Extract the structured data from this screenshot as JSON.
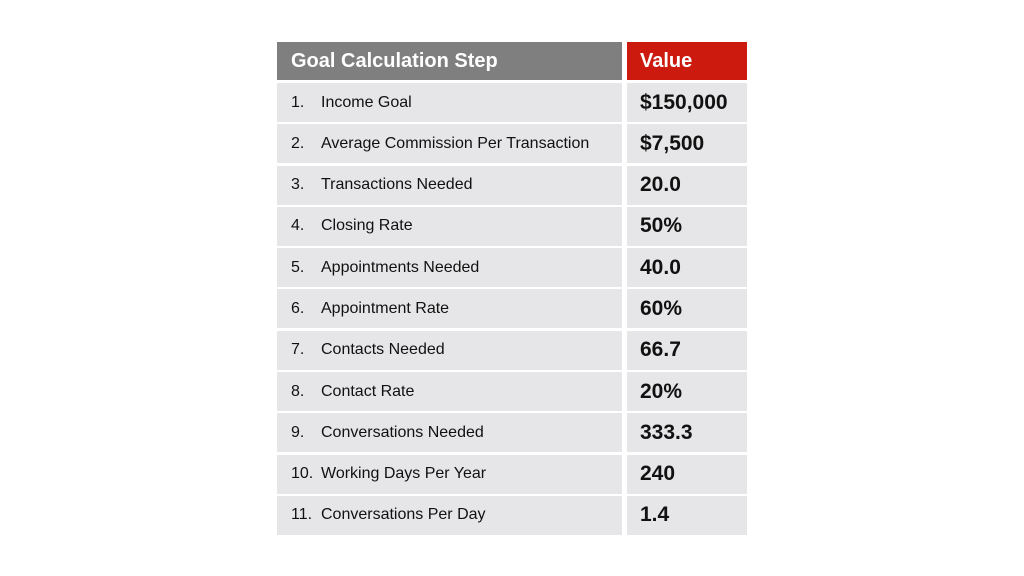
{
  "table": {
    "headers": {
      "step": "Goal Calculation Step",
      "value": "Value"
    },
    "header_colors": {
      "step_bg": "#7f7f7f",
      "value_bg": "#cc1a0e"
    },
    "rows": [
      {
        "num": "1.",
        "label": "Income Goal",
        "value": "$150,000"
      },
      {
        "num": "2.",
        "label": "Average Commission Per Transaction",
        "value": "$7,500"
      },
      {
        "num": "3.",
        "label": "Transactions Needed",
        "value": "20.0"
      },
      {
        "num": "4.",
        "label": "Closing Rate",
        "value": "50%"
      },
      {
        "num": "5.",
        "label": "Appointments Needed",
        "value": "40.0"
      },
      {
        "num": "6.",
        "label": "Appointment Rate",
        "value": "60%"
      },
      {
        "num": "7.",
        "label": "Contacts Needed",
        "value": "66.7"
      },
      {
        "num": "8.",
        "label": "Contact Rate",
        "value": "20%"
      },
      {
        "num": "9.",
        "label": "Conversations Needed",
        "value": "333.3"
      },
      {
        "num": "10.",
        "label": "Working Days Per Year",
        "value": "240"
      },
      {
        "num": "11.",
        "label": "Conversations Per Day",
        "value": "1.4"
      }
    ]
  }
}
